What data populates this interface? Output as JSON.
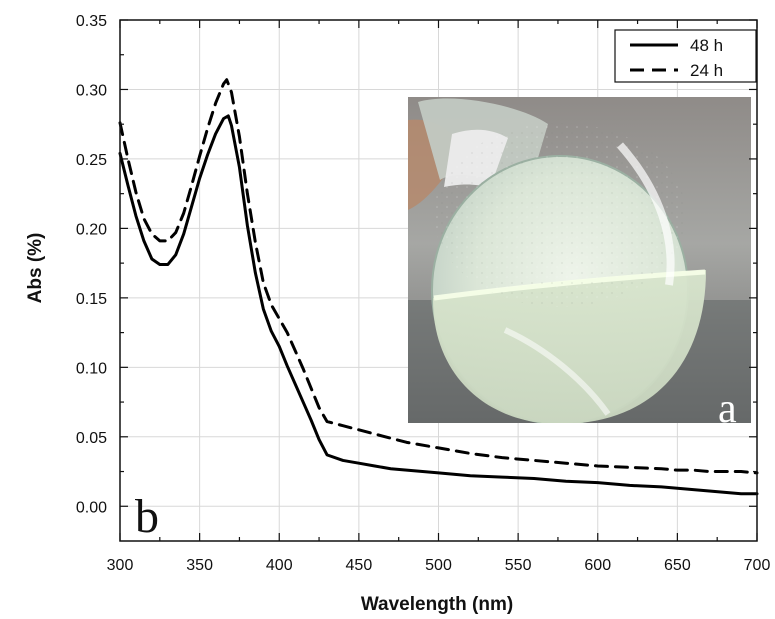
{
  "chart_data": {
    "type": "line",
    "title": "",
    "xlabel": "Wavelength (nm)",
    "ylabel": "Abs (%)",
    "xlim": [
      300,
      700
    ],
    "ylim": [
      -0.025,
      0.35
    ],
    "xticks": [
      300,
      350,
      400,
      450,
      500,
      550,
      600,
      650,
      700
    ],
    "yticks": [
      0.0,
      0.05,
      0.1,
      0.15,
      0.2,
      0.25,
      0.3,
      0.35
    ],
    "xtick_labels": [
      "300",
      "350",
      "400",
      "450",
      "500",
      "550",
      "600",
      "650",
      "700"
    ],
    "ytick_labels": [
      "0.00",
      "0.05",
      "0.10",
      "0.15",
      "0.20",
      "0.25",
      "0.30",
      "0.35"
    ],
    "grid": true,
    "legend_position": "top-right",
    "panel_label": "b",
    "inset_label": "a",
    "series": [
      {
        "name": "48 h",
        "style": "solid",
        "color": "#000000",
        "x": [
          300,
          305,
          310,
          315,
          320,
          325,
          330,
          335,
          340,
          345,
          350,
          355,
          360,
          365,
          368,
          370,
          375,
          380,
          385,
          390,
          395,
          400,
          405,
          410,
          415,
          420,
          425,
          430,
          440,
          450,
          460,
          470,
          480,
          500,
          520,
          540,
          560,
          580,
          600,
          620,
          640,
          650,
          660,
          670,
          680,
          690,
          700
        ],
        "y": [
          0.254,
          0.231,
          0.209,
          0.191,
          0.178,
          0.174,
          0.174,
          0.181,
          0.196,
          0.216,
          0.236,
          0.253,
          0.268,
          0.279,
          0.281,
          0.274,
          0.244,
          0.202,
          0.168,
          0.142,
          0.126,
          0.115,
          0.101,
          0.088,
          0.075,
          0.062,
          0.048,
          0.037,
          0.033,
          0.031,
          0.029,
          0.027,
          0.026,
          0.024,
          0.022,
          0.021,
          0.02,
          0.018,
          0.017,
          0.015,
          0.014,
          0.013,
          0.012,
          0.011,
          0.01,
          0.009,
          0.009
        ]
      },
      {
        "name": "24 h",
        "style": "dashed",
        "color": "#000000",
        "x": [
          300,
          305,
          310,
          315,
          320,
          325,
          330,
          335,
          340,
          345,
          350,
          355,
          360,
          365,
          367,
          370,
          375,
          380,
          385,
          390,
          395,
          400,
          405,
          410,
          415,
          420,
          425,
          430,
          440,
          450,
          460,
          470,
          480,
          500,
          520,
          540,
          560,
          580,
          600,
          620,
          640,
          650,
          660,
          670,
          680,
          690,
          700
        ],
        "y": [
          0.276,
          0.25,
          0.226,
          0.207,
          0.196,
          0.191,
          0.191,
          0.197,
          0.211,
          0.231,
          0.252,
          0.272,
          0.29,
          0.304,
          0.307,
          0.298,
          0.266,
          0.225,
          0.19,
          0.161,
          0.145,
          0.135,
          0.125,
          0.112,
          0.099,
          0.085,
          0.071,
          0.061,
          0.058,
          0.055,
          0.052,
          0.049,
          0.046,
          0.042,
          0.038,
          0.035,
          0.033,
          0.031,
          0.029,
          0.028,
          0.027,
          0.026,
          0.026,
          0.025,
          0.025,
          0.025,
          0.024
        ]
      }
    ]
  }
}
